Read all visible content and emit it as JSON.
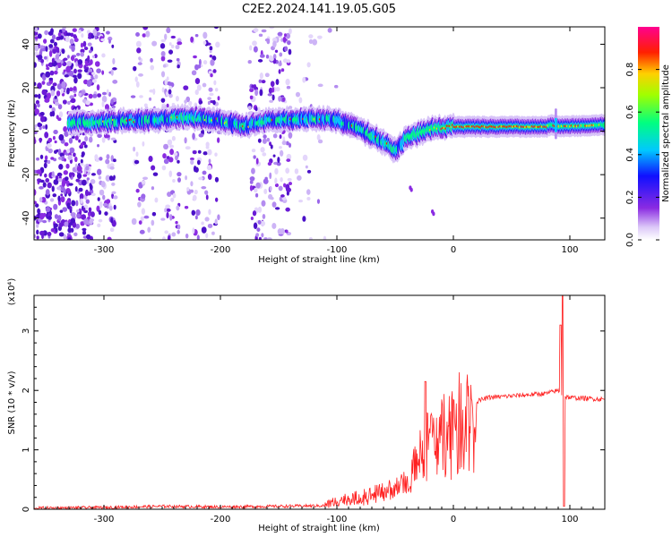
{
  "title": "C2E2.2024.141.19.05.G05",
  "chart_data": [
    {
      "type": "heatmap",
      "xlabel": "Height of straight line (km)",
      "ylabel": "Frequency (Hz)",
      "xlim": [
        -360,
        130
      ],
      "ylim": [
        -50,
        48
      ],
      "xticks": [
        -300,
        -200,
        -100,
        0,
        100
      ],
      "yticks": [
        -40,
        -20,
        0,
        20,
        40
      ],
      "colorbar": {
        "label": "Normalized spectral amplitude",
        "range": [
          0,
          1
        ],
        "ticks": [
          "0.0",
          "0.2",
          "0.4",
          "0.6",
          "0.8"
        ],
        "colormap": "rainbow (white → purple → blue → cyan → green → yellow → red → magenta)"
      },
      "ridge": {
        "x": [
          -320,
          -300,
          -280,
          -260,
          -240,
          -220,
          -200,
          -180,
          -160,
          -140,
          -120,
          -100,
          -80,
          -60,
          -50,
          -40,
          -30,
          -20,
          0,
          20,
          50,
          80,
          85,
          90,
          130
        ],
        "freq": [
          4,
          4,
          5,
          5,
          6,
          6,
          5,
          2,
          5,
          5,
          6,
          5,
          1,
          -5,
          -9,
          -3,
          -1,
          1,
          2,
          2,
          2,
          2,
          3,
          2,
          3
        ]
      }
    },
    {
      "type": "line",
      "xlabel": "Height of straight line (km)",
      "ylabel": "SNR (10 * v/v)",
      "yscale_label": "(x10⁴)",
      "xlim": [
        -360,
        130
      ],
      "ylim": [
        0,
        3.6
      ],
      "xticks": [
        -300,
        -200,
        -100,
        0,
        100
      ],
      "yticks": [
        0,
        1,
        2,
        3
      ],
      "color": "#ff2020",
      "envelope": {
        "x": [
          -360,
          -300,
          -250,
          -200,
          -150,
          -110,
          -100,
          -80,
          -60,
          -40,
          -30,
          -20,
          -10,
          0,
          10,
          30,
          60,
          80,
          90,
          95,
          100,
          130
        ],
        "y": [
          0.02,
          0.03,
          0.05,
          0.04,
          0.05,
          0.06,
          0.15,
          0.2,
          0.3,
          0.45,
          0.9,
          1.3,
          1.5,
          1.6,
          1.75,
          1.88,
          1.92,
          1.95,
          2.0,
          1.9,
          1.88,
          1.85
        ]
      },
      "spikes": [
        {
          "x": -24,
          "y": 2.15
        },
        {
          "x": 92,
          "y": 3.1
        },
        {
          "x": 94,
          "y": 3.6
        },
        {
          "x": 95,
          "y": 0.05
        }
      ]
    }
  ]
}
